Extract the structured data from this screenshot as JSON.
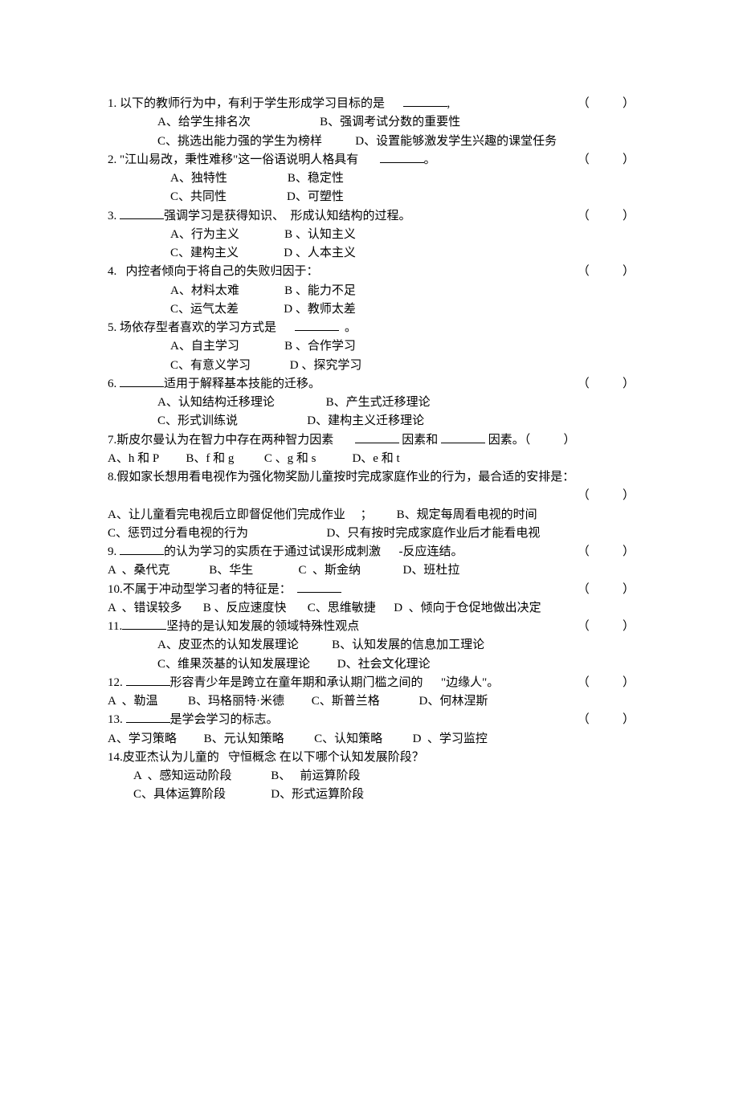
{
  "paren_text": "（           ）",
  "questions": [
    {
      "num": "1. ",
      "stem": "以下的教师行为中，有利于学生形成学习目标的是      ",
      "blank": 55,
      "tail": ",",
      "paren": true,
      "opts": [
        {
          "indent": "indent1",
          "text": "A、给学生排名次                       B、强调考试分数的重要性"
        },
        {
          "indent": "indent1",
          "text": "C、挑选出能力强的学生为榜样           D、设置能够激发学生兴趣的课堂任务"
        }
      ]
    },
    {
      "num": "2. ",
      "stem": "\"江山易改，秉性难移\"这一俗语说明人格具有       ",
      "blank": 55,
      "tail": "。",
      "paren": true,
      "opts": [
        {
          "indent": "indent2",
          "text": "A、独特性                    B、稳定性"
        },
        {
          "indent": "indent2",
          "text": "C、共同性                    D、可塑性"
        }
      ]
    },
    {
      "num": "3. ",
      "stem_pre": "",
      "blank_pre": 55,
      "stem": "强调学习是获得知识、  形成认知结构的过程。",
      "paren": true,
      "opts": [
        {
          "indent": "indent2",
          "text": "A、行为主义               B 、认知主义"
        },
        {
          "indent": "indent2",
          "text": "C、建构主义               D 、人本主义"
        }
      ]
    },
    {
      "num": "4.   ",
      "stem": "内控者倾向于将自己的失败归因于：",
      "paren": true,
      "opts": [
        {
          "indent": "indent2",
          "text": "A、材料太难               B 、能力不足"
        },
        {
          "indent": "indent2",
          "text": "C、运气太差               D 、教师太差"
        }
      ]
    },
    {
      "num": "5. ",
      "stem": "场依存型者喜欢的学习方式是      ",
      "blank": 55,
      "tail": "  。",
      "paren": false,
      "opts": [
        {
          "indent": "indent2",
          "text": "A、自主学习               B 、合作学习"
        },
        {
          "indent": "indent2",
          "text": "C、有意义学习             D 、探究学习"
        }
      ]
    },
    {
      "num": "6. ",
      "stem_pre": "",
      "blank_pre": 55,
      "stem": "适用于解释基本技能的迁移。",
      "paren": true,
      "opts": [
        {
          "indent": "indent1",
          "text": "A、认知结构迁移理论                 B、产生式迁移理论"
        },
        {
          "indent": "indent1",
          "text": "C、形式训练说                       D、建构主义迁移理论"
        }
      ]
    },
    {
      "num": "7.",
      "stem_parts": [
        "斯皮尔曼认为在智力中存在两种智力因素       ",
        " 因素和 ",
        " 因素。（           ）"
      ],
      "blanks_mid": [
        55,
        55
      ],
      "paren": false,
      "opts": [
        {
          "indent": "indent0",
          "text": "A、h 和 P         B、f 和 g          C 、g 和 s            D、e 和 t"
        }
      ]
    },
    {
      "num": "8.",
      "stem": "假如家长想用看电视作为强化物奖励儿童按时完成家庭作业的行为，最合适的安排是：",
      "paren_newline": true,
      "opts": [
        {
          "indent": "indent0",
          "text": "A、让儿童看完电视后立即督促他们完成作业     ；        B、规定每周看电视的时间"
        },
        {
          "indent": "indent0",
          "text": "C、惩罚过分看电视的行为                          D、只有按时完成家庭作业后才能看电视"
        }
      ]
    },
    {
      "num": "9. ",
      "stem_pre": "",
      "blank_pre": 55,
      "stem": "的认为学习的实质在于通过试误形成刺激      -反应连结。",
      "paren": true,
      "opts": [
        {
          "indent": "indent0",
          "text": "A  、桑代克             B、华生               C  、斯金纳              D、班杜拉"
        }
      ]
    },
    {
      "num": "10.",
      "stem": "不属于冲动型学习者的特征是：  ",
      "blank": 55,
      "tail": "",
      "paren": true,
      "opts": [
        {
          "indent": "indent0",
          "text": "A  、错误较多       B 、反应速度快       C、思维敏捷      D  、倾向于仓促地做出决定"
        }
      ]
    },
    {
      "num": "11.",
      "stem_pre": "",
      "blank_pre": 55,
      "stem": "坚持的是认知发展的领域特殊性观点",
      "paren": true,
      "opts": [
        {
          "indent": "indent1",
          "text": "A、皮亚杰的认知发展理论           B、认知发展的信息加工理论"
        },
        {
          "indent": "indent1",
          "text": "C、维果茨基的认知发展理论         D、社会文化理论"
        }
      ]
    },
    {
      "num": "12. ",
      "stem_pre": "",
      "blank_pre": 55,
      "stem": "形容青少年是跨立在童年期和承认期门槛之间的      \"边缘人\"。",
      "paren": true,
      "opts": [
        {
          "indent": "indent0",
          "text": "A  、勒温          B、玛格丽特·米德         C、斯普兰格             D、何林涅斯"
        }
      ]
    },
    {
      "num": "13. ",
      "stem_pre": "",
      "blank_pre": 55,
      "stem": "是学会学习的标志。",
      "paren": true,
      "opts": [
        {
          "indent": "indent0",
          "text": "A、学习策略         B、元认知策略          C、认知策略          D  、学习监控"
        }
      ]
    },
    {
      "num": "14.",
      "stem": "皮亚杰认为儿童的   守恒概念 在以下哪个认知发展阶段？",
      "paren": false,
      "opts": [
        {
          "indent": "indent3",
          "text": "A  、感知运动阶段             B、   前运算阶段"
        },
        {
          "indent": "indent3",
          "text": "C、具体运算阶段               D、形式运算阶段"
        }
      ]
    }
  ]
}
